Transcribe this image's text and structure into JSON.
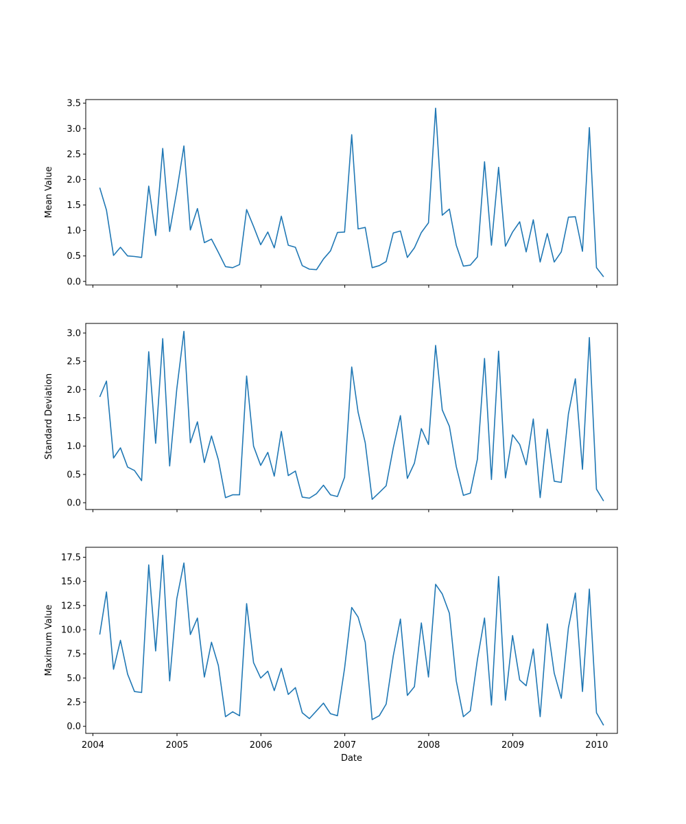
{
  "chart_data": {
    "type": "line",
    "x": [
      "2004-01-31",
      "2004-02-29",
      "2004-03-31",
      "2004-04-30",
      "2004-05-31",
      "2004-06-30",
      "2004-07-31",
      "2004-08-31",
      "2004-09-30",
      "2004-10-31",
      "2004-11-30",
      "2004-12-31",
      "2005-01-31",
      "2005-02-28",
      "2005-03-31",
      "2005-04-30",
      "2005-05-31",
      "2005-06-30",
      "2005-07-31",
      "2005-08-31",
      "2005-09-30",
      "2005-10-31",
      "2005-11-30",
      "2005-12-31",
      "2006-01-31",
      "2006-02-28",
      "2006-03-31",
      "2006-04-30",
      "2006-05-31",
      "2006-06-30",
      "2006-07-31",
      "2006-08-31",
      "2006-09-30",
      "2006-10-31",
      "2006-11-30",
      "2006-12-31",
      "2007-01-31",
      "2007-02-28",
      "2007-03-31",
      "2007-04-30",
      "2007-05-31",
      "2007-06-30",
      "2007-07-31",
      "2007-08-31",
      "2007-09-30",
      "2007-10-31",
      "2007-11-30",
      "2007-12-31",
      "2008-01-31",
      "2008-02-29",
      "2008-03-31",
      "2008-04-30",
      "2008-05-31",
      "2008-06-30",
      "2008-07-31",
      "2008-08-31",
      "2008-09-30",
      "2008-10-31",
      "2008-11-30",
      "2008-12-31",
      "2009-01-31",
      "2009-02-28",
      "2009-03-31",
      "2009-04-30",
      "2009-05-31",
      "2009-06-30",
      "2009-07-31",
      "2009-08-31",
      "2009-09-30",
      "2009-10-31",
      "2009-11-30",
      "2009-12-31",
      "2010-01-31"
    ],
    "xlabel": "Date",
    "xticks": [
      "2004",
      "2005",
      "2006",
      "2007",
      "2008",
      "2009",
      "2010"
    ],
    "line_color": "#1f77b4",
    "grid": false,
    "subplots": [
      {
        "ylabel": "Mean Value",
        "ylim": [
          -0.07,
          3.57
        ],
        "yticks": [
          "0.0",
          "0.5",
          "1.0",
          "1.5",
          "2.0",
          "2.5",
          "3.0",
          "3.5"
        ],
        "values": [
          1.84,
          1.4,
          0.51,
          0.67,
          0.5,
          0.49,
          0.47,
          1.87,
          0.9,
          2.61,
          0.98,
          1.77,
          2.66,
          1.01,
          1.43,
          0.76,
          0.83,
          0.57,
          0.29,
          0.27,
          0.33,
          1.41,
          1.08,
          0.72,
          0.97,
          0.66,
          1.28,
          0.71,
          0.67,
          0.31,
          0.24,
          0.23,
          0.44,
          0.6,
          0.96,
          0.97,
          2.88,
          1.03,
          1.06,
          0.27,
          0.31,
          0.39,
          0.95,
          0.99,
          0.47,
          0.66,
          0.96,
          1.15,
          3.4,
          1.3,
          1.42,
          0.71,
          0.3,
          0.32,
          0.48,
          2.35,
          0.71,
          2.24,
          0.69,
          0.97,
          1.17,
          0.58,
          1.21,
          0.38,
          0.94,
          0.38,
          0.58,
          1.26,
          1.27,
          0.59,
          3.02,
          0.27,
          0.09
        ]
      },
      {
        "ylabel": "Standard Deviation",
        "ylim": [
          -0.12,
          3.17
        ],
        "yticks": [
          "0.0",
          "0.5",
          "1.0",
          "1.5",
          "2.0",
          "2.5",
          "3.0"
        ],
        "values": [
          1.87,
          2.15,
          0.79,
          0.97,
          0.63,
          0.57,
          0.39,
          2.67,
          1.05,
          2.9,
          0.65,
          2.01,
          3.03,
          1.06,
          1.43,
          0.71,
          1.18,
          0.76,
          0.09,
          0.14,
          0.14,
          2.24,
          1.0,
          0.66,
          0.89,
          0.47,
          1.26,
          0.48,
          0.56,
          0.1,
          0.08,
          0.16,
          0.31,
          0.14,
          0.11,
          0.45,
          2.4,
          1.6,
          1.06,
          0.06,
          0.18,
          0.3,
          0.97,
          1.54,
          0.43,
          0.7,
          1.31,
          1.03,
          2.78,
          1.64,
          1.35,
          0.64,
          0.13,
          0.17,
          0.77,
          2.55,
          0.41,
          2.68,
          0.44,
          1.2,
          1.03,
          0.67,
          1.48,
          0.09,
          1.3,
          0.38,
          0.36,
          1.57,
          2.19,
          0.59,
          2.92,
          0.24,
          0.03
        ]
      },
      {
        "ylabel": "Maximum Value",
        "ylim": [
          -0.73,
          18.53
        ],
        "yticks": [
          "0.0",
          "2.5",
          "5.0",
          "7.5",
          "10.0",
          "12.5",
          "15.0",
          "17.5"
        ],
        "values": [
          9.5,
          13.9,
          5.9,
          8.9,
          5.4,
          3.6,
          3.5,
          16.7,
          7.8,
          17.7,
          4.7,
          13.2,
          16.9,
          9.5,
          11.2,
          5.1,
          8.7,
          6.3,
          1.0,
          1.5,
          1.1,
          12.7,
          6.6,
          5.0,
          5.7,
          3.7,
          6.0,
          3.3,
          4.0,
          1.4,
          0.8,
          1.6,
          2.4,
          1.3,
          1.1,
          6.0,
          12.3,
          11.3,
          8.7,
          0.7,
          1.1,
          2.3,
          7.3,
          11.1,
          3.2,
          4.1,
          10.7,
          5.1,
          14.7,
          13.7,
          11.7,
          4.7,
          1.0,
          1.6,
          6.9,
          11.2,
          2.2,
          15.5,
          2.7,
          9.4,
          4.8,
          4.2,
          8.0,
          1.0,
          10.6,
          5.5,
          2.9,
          10.2,
          13.8,
          3.6,
          14.2,
          1.4,
          0.1
        ]
      }
    ]
  }
}
